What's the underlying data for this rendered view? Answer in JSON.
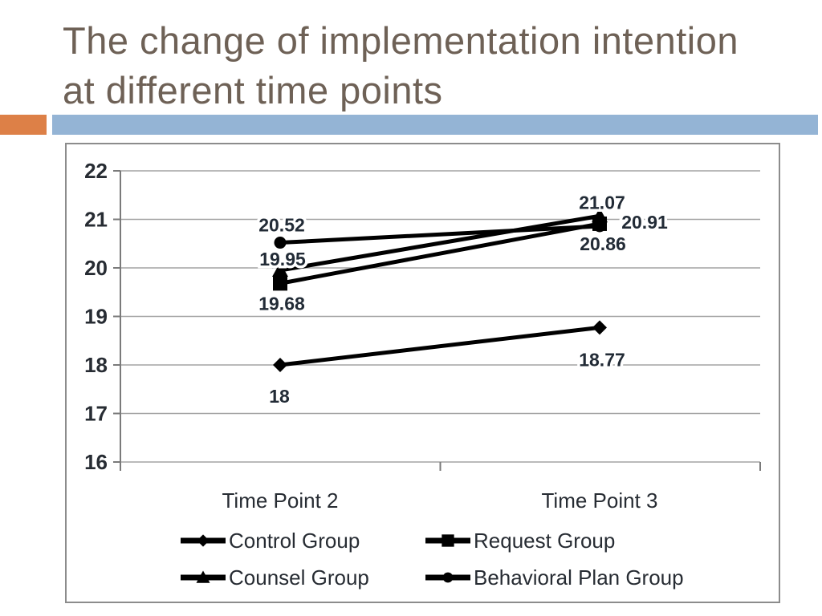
{
  "slide": {
    "title_lines": [
      "The change of implementation intention",
      "at different time points"
    ],
    "colors": {
      "title_text": "#6e6156",
      "accent_orange": "#dd8047",
      "accent_blue": "#94b4d5"
    }
  },
  "chart_data": {
    "type": "line",
    "title": "",
    "categories": [
      "Time Point 2",
      "Time Point 3"
    ],
    "series": [
      {
        "name": "Control Group",
        "marker": "diamond",
        "values": [
          18.0,
          18.77
        ],
        "point_labels": [
          "18",
          "18.77"
        ]
      },
      {
        "name": "Request Group",
        "marker": "square",
        "values": [
          19.68,
          20.91
        ],
        "point_labels": [
          "19.68",
          "20.91"
        ]
      },
      {
        "name": "Counsel Group",
        "marker": "triangle",
        "values": [
          19.95,
          21.07
        ],
        "point_labels": [
          "19.95",
          "21.07"
        ]
      },
      {
        "name": "Behavioral Plan Group",
        "marker": "circle",
        "values": [
          20.52,
          20.86
        ],
        "point_labels": [
          "20.52",
          "20.86"
        ]
      }
    ],
    "ylim": [
      16,
      22
    ],
    "y_ticks": [
      16,
      17,
      18,
      19,
      20,
      21,
      22
    ],
    "grid": true,
    "legend_position": "bottom-two-columns",
    "legend_row_major_order": [
      "Control Group",
      "Request Group",
      "Counsel Group",
      "Behavioral Plan Group"
    ],
    "colors": {
      "series_line": "#000000",
      "gridline": "#a3a3a3",
      "axis": "#7a7a7a",
      "axis_text": "#272c33",
      "data_label_text": "#222b36"
    },
    "label_offsets": [
      [
        [
          -1,
          47
        ],
        [
          3,
          48
        ]
      ],
      [
        [
          2,
          33
        ],
        [
          56,
          6
        ]
      ],
      [
        [
          3,
          -6
        ],
        [
          3,
          -9
        ]
      ],
      [
        [
          2,
          -14
        ],
        [
          4,
          30
        ]
      ]
    ]
  }
}
